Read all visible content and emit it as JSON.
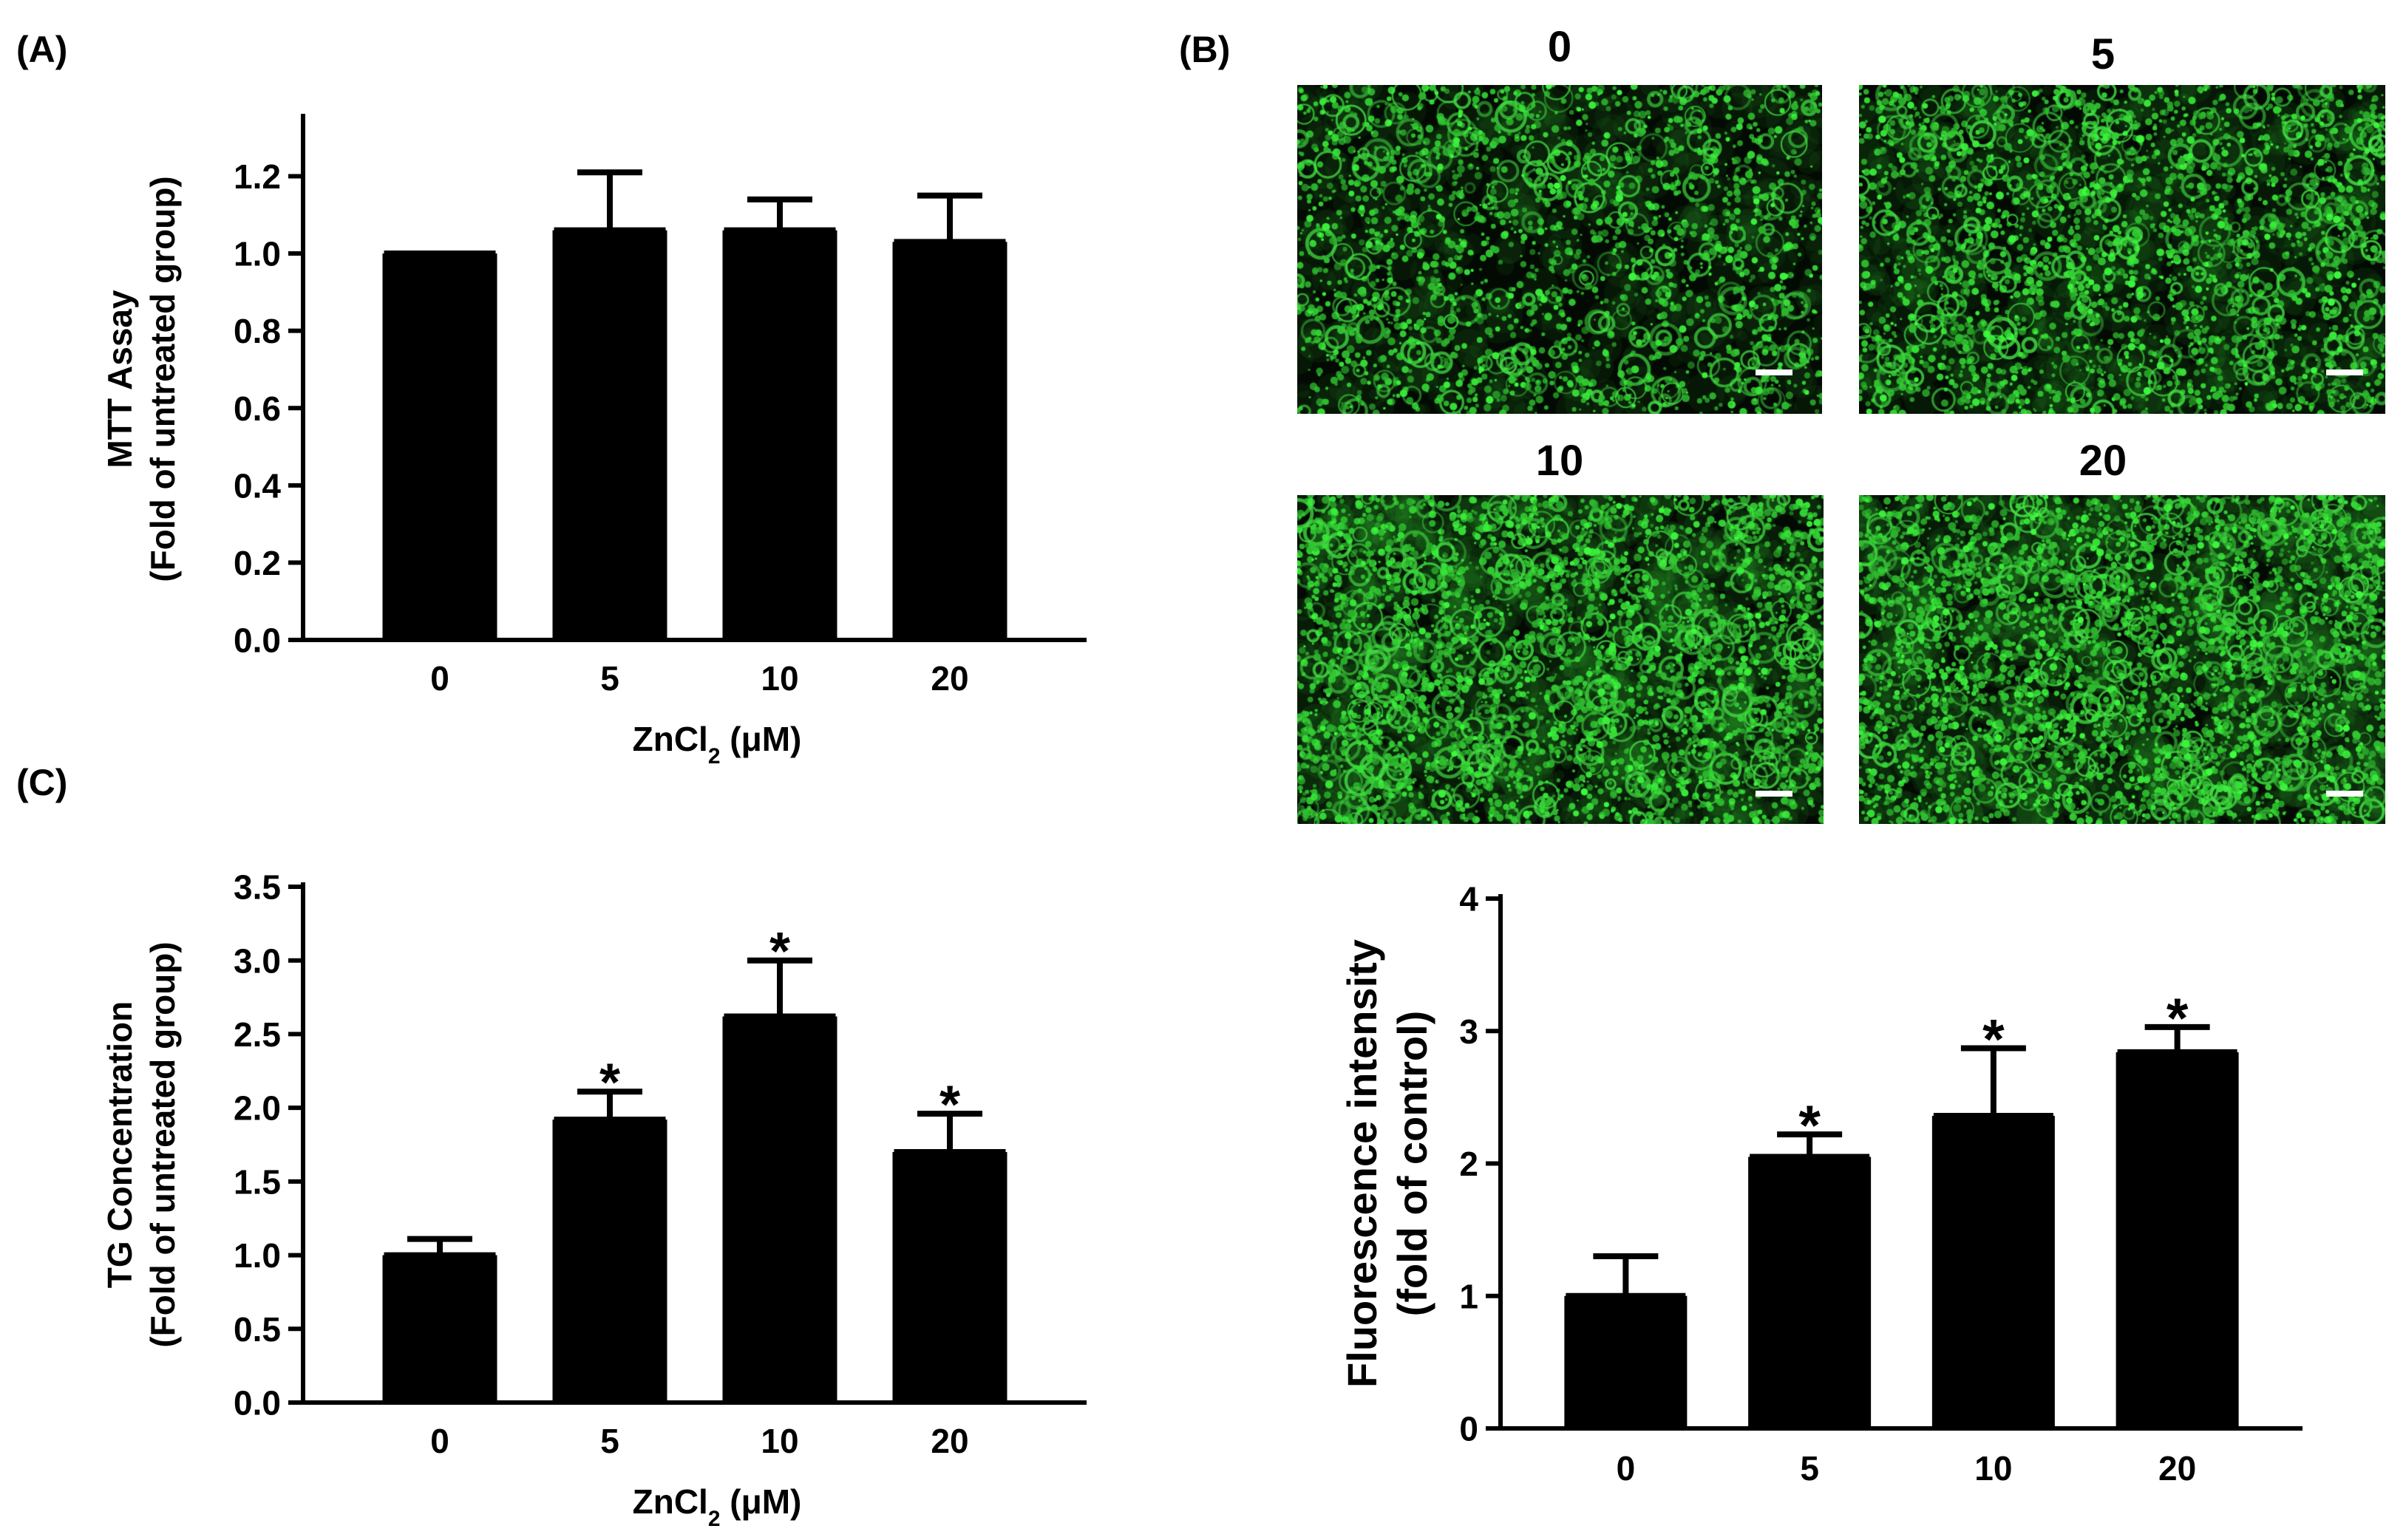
{
  "panels": {
    "a": "(A)",
    "b": "(B)",
    "c": "(C)"
  },
  "chart_data": [
    {
      "type": "bar",
      "panel": "A",
      "categories": [
        "0",
        "5",
        "10",
        "20"
      ],
      "values": [
        1.0,
        1.06,
        1.06,
        1.03
      ],
      "errors": [
        0.0,
        0.15,
        0.08,
        0.12
      ],
      "significant": [
        false,
        false,
        false,
        false
      ],
      "ylabel_line1": "MTT Assay",
      "ylabel_line2": "(Fold of untreated group)",
      "xlabel_main": "ZnCl",
      "xlabel_sub": "2",
      "xlabel_unit": " (μM)",
      "ylim": [
        0,
        1.35
      ],
      "yticks": [
        "0.0",
        "0.2",
        "0.4",
        "0.6",
        "0.8",
        "1.0",
        "1.2"
      ],
      "ytick_values": [
        0,
        0.2,
        0.4,
        0.6,
        0.8,
        1.0,
        1.2
      ],
      "bar_color": "#000000"
    },
    {
      "type": "bar",
      "panel": "C",
      "categories": [
        "0",
        "5",
        "10",
        "20"
      ],
      "values": [
        1.0,
        1.92,
        2.62,
        1.7
      ],
      "errors": [
        0.11,
        0.19,
        0.38,
        0.26
      ],
      "significant": [
        false,
        true,
        true,
        true
      ],
      "sig_marker": "*",
      "ylabel_line1": "TG Concentration",
      "ylabel_line2": "(Fold of untreated group)",
      "xlabel_main": "ZnCl",
      "xlabel_sub": "2",
      "xlabel_unit": " (μM)",
      "ylim": [
        0,
        3.5
      ],
      "yticks": [
        "0.0",
        "0.5",
        "1.0",
        "1.5",
        "2.0",
        "2.5",
        "3.0",
        "3.5"
      ],
      "ytick_values": [
        0,
        0.5,
        1.0,
        1.5,
        2.0,
        2.5,
        3.0,
        3.5
      ],
      "bar_color": "#000000"
    },
    {
      "type": "bar",
      "panel": "B",
      "categories": [
        "0",
        "5",
        "10",
        "20"
      ],
      "values": [
        1.0,
        2.05,
        2.36,
        2.84
      ],
      "errors": [
        0.3,
        0.17,
        0.51,
        0.19
      ],
      "significant": [
        false,
        true,
        true,
        true
      ],
      "sig_marker": "*",
      "ylabel_line1": "Fluorescence intensity",
      "ylabel_line2": "(fold of control)",
      "ylim": [
        0,
        4
      ],
      "yticks": [
        "0",
        "1",
        "2",
        "3",
        "4"
      ],
      "ytick_values": [
        0,
        1,
        2,
        3,
        4
      ],
      "bar_color": "#000000"
    }
  ],
  "micrographs": {
    "labels": [
      "0",
      "5",
      "10",
      "20"
    ],
    "stain_color": "#33dd33",
    "background_color": "#030a03",
    "relative_intensity": [
      0.55,
      0.7,
      0.95,
      1.0
    ]
  }
}
